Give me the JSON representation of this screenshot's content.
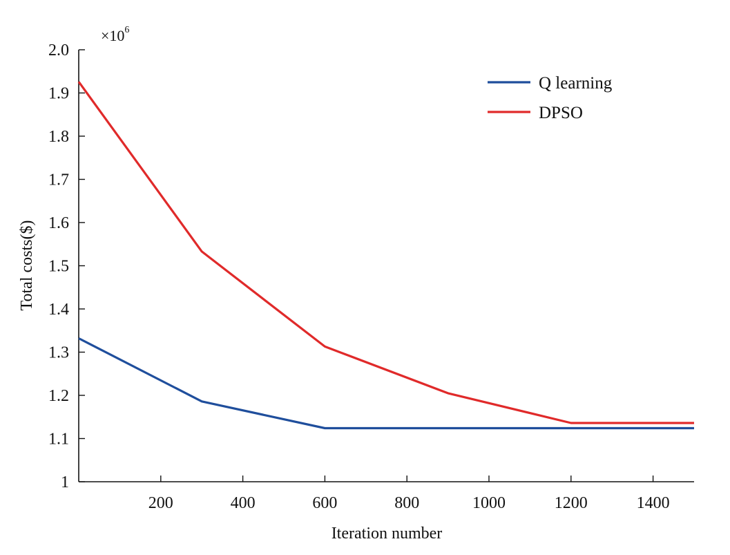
{
  "chart_data": {
    "type": "line",
    "xlabel": "Iteration number",
    "ylabel": "Total costs($)",
    "y_multiplier": {
      "base": "×10",
      "exponent": "6"
    },
    "xlim": [
      0,
      1500
    ],
    "ylim": [
      1.0,
      2.0
    ],
    "x_ticks": [
      200,
      400,
      600,
      800,
      1000,
      1200,
      1400
    ],
    "x_tick_labels": [
      "200",
      "400",
      "600",
      "800",
      "1000",
      "1200",
      "1400"
    ],
    "y_ticks": [
      1.0,
      1.1,
      1.2,
      1.3,
      1.4,
      1.5,
      1.6,
      1.7,
      1.8,
      1.9,
      2.0
    ],
    "y_tick_labels": [
      "1",
      "1.1",
      "1.2",
      "1.3",
      "1.4",
      "1.5",
      "1.6",
      "1.7",
      "1.8",
      "1.9",
      "2.0"
    ],
    "grid": false,
    "legend_position": "top-right",
    "series": [
      {
        "name": "Q learning",
        "color": "#1f4e9c",
        "x": [
          0,
          300,
          600,
          900,
          1200,
          1500
        ],
        "y": [
          1.332,
          1.186,
          1.124,
          1.124,
          1.124,
          1.124
        ]
      },
      {
        "name": "DPSO",
        "color": "#e02a2a",
        "x": [
          0,
          300,
          600,
          900,
          1200,
          1500
        ],
        "y": [
          1.926,
          1.533,
          1.313,
          1.205,
          1.136,
          1.136
        ]
      }
    ]
  }
}
